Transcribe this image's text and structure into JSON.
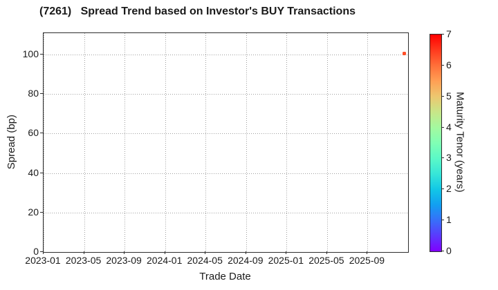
{
  "chart_data": {
    "type": "scatter",
    "title": "(7261)   Spread Trend based on Investor's BUY Transactions",
    "xlabel": "Trade Date",
    "ylabel": "Spread (bp)",
    "x_tick_labels": [
      "2023-01",
      "2023-05",
      "2023-09",
      "2024-01",
      "2024-05",
      "2024-09",
      "2025-01",
      "2025-05",
      "2025-09"
    ],
    "x_axis_note": "ticks every 4 months; axis extends one unlabeled interval past 2025-09 to the right edge (2026-01)",
    "y_ticks": [
      0,
      20,
      40,
      60,
      80,
      100
    ],
    "ylim": [
      0,
      110.8
    ],
    "grid": true,
    "grid_style": "dotted",
    "legend": "none",
    "points": [
      {
        "trade_date": "2025-12",
        "spread_bp": 100.5,
        "maturity_tenor_years": 6.3,
        "color": "#ff4f28",
        "x_fraction": 0.989
      }
    ],
    "colorbar": {
      "label": "Maturity Tenor (years)",
      "ticks": [
        0,
        1,
        2,
        3,
        4,
        5,
        6,
        7
      ],
      "min": 0,
      "max": 7,
      "colormap": "rainbow",
      "gradient_bottom_to_top": [
        "#8000ff",
        "#5b39fd",
        "#376ff9",
        "#129ff1",
        "#12c7e6",
        "#37e6d8",
        "#5bf9c7",
        "#80ffb4",
        "#a4f99f",
        "#c8e688",
        "#edc76f",
        "#ff9f54",
        "#ff6f39",
        "#ff391d",
        "#ff0000"
      ]
    }
  },
  "colors": {
    "text": "#1a1a1a",
    "spine": "#2b2b2b",
    "gridline": "#9e9e9e",
    "background": "#ffffff"
  }
}
